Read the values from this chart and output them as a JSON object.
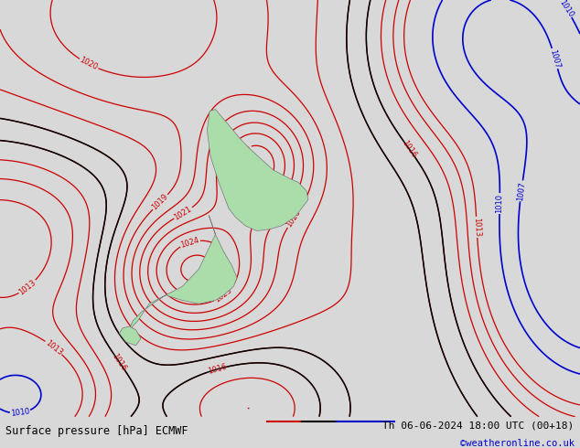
{
  "title_left": "Surface pressure [hPa] ECMWF",
  "title_right": "Th 06-06-2024 18:00 UTC (00+18)",
  "copyright": "©weatheronline.co.uk",
  "background_color": "#d8d8d8",
  "map_bg_color": "#e0e0e0",
  "land_color": "#aaddaa",
  "contour_color_red": "#cc0000",
  "contour_color_blue": "#0000cc",
  "contour_color_black": "#000000",
  "text_color_bottom": "#000000",
  "copyright_color": "#0000cc",
  "extent": [
    160,
    195,
    -52,
    -28
  ]
}
